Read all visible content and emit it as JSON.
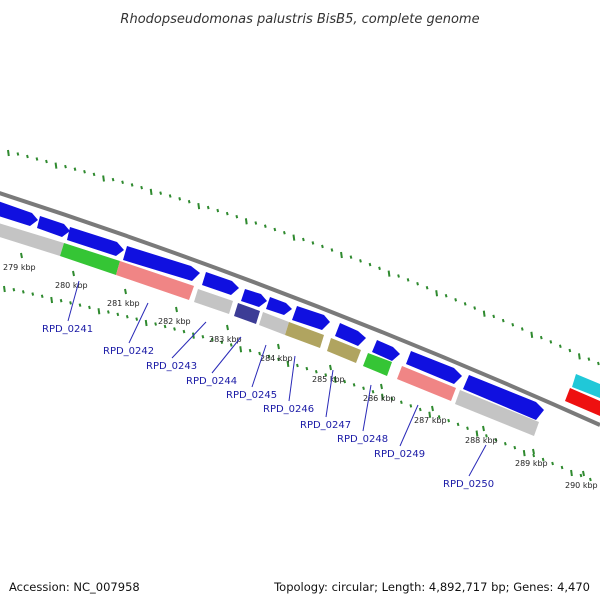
{
  "title": "Rhodopseudomonas palustris BisB5, complete genome",
  "footer": {
    "accession": "Accession: NC_007958",
    "topology": "Topology: circular; Length: 4,892,717 bp; Genes: 4,470"
  },
  "colors": {
    "backbone": "#7a7a7a",
    "ticks": "#2f8a2f",
    "label_text": "#1a1aa6",
    "leader": "#2a2ab8"
  },
  "scale": {
    "unit": "kbp",
    "labels": [
      {
        "kbp": 279,
        "text": "279 kbp"
      },
      {
        "kbp": 280,
        "text": "280 kbp"
      },
      {
        "kbp": 281,
        "text": "281 kbp"
      },
      {
        "kbp": 282,
        "text": "282 kbp"
      },
      {
        "kbp": 283,
        "text": "283 kbp"
      },
      {
        "kbp": 284,
        "text": "284 kbp"
      },
      {
        "kbp": 285,
        "text": "285 kbp"
      },
      {
        "kbp": 286,
        "text": "286 kbp"
      },
      {
        "kbp": 287,
        "text": "287 kbp"
      },
      {
        "kbp": 288,
        "text": "288 kbp"
      },
      {
        "kbp": 289,
        "text": "289 kbp"
      },
      {
        "kbp": 290,
        "text": "290 kbp"
      }
    ]
  },
  "gene_labels": [
    "RPD_0241",
    "RPD_0242",
    "RPD_0243",
    "RPD_0244",
    "RPD_0245",
    "RPD_0246",
    "RPD_0247",
    "RPD_0248",
    "RPD_0249",
    "RPD_0250"
  ]
}
